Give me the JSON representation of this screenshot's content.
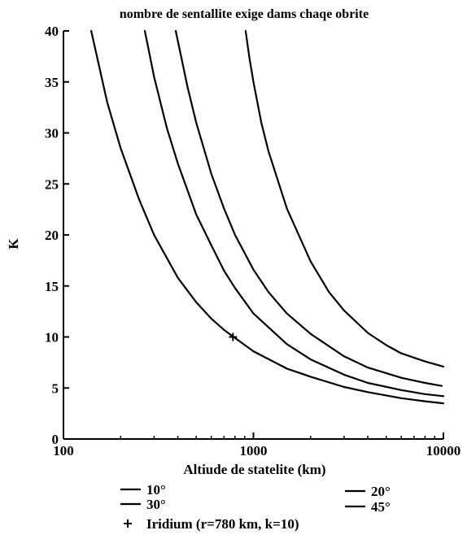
{
  "chart_data": {
    "type": "line",
    "title": "nombre de sentallite exige dams chaqe obrite",
    "xlabel": "Altiude de statelite (km)",
    "ylabel": "K",
    "x_scale": "log",
    "xlim": [
      100,
      10000
    ],
    "ylim": [
      0,
      40
    ],
    "x_ticks": [
      100,
      1000,
      10000
    ],
    "x_tick_labels": [
      "100",
      "1000",
      "10000"
    ],
    "y_ticks": [
      0,
      5,
      10,
      15,
      20,
      25,
      30,
      35,
      40
    ],
    "y_tick_labels": [
      "0",
      "5",
      "10",
      "15",
      "20",
      "25",
      "30",
      "35",
      "40"
    ],
    "grid": false,
    "legend_position": "bottom",
    "series": [
      {
        "name": "10°",
        "x": [
          140,
          170,
          200,
          250,
          300,
          400,
          500,
          600,
          700,
          800,
          1000,
          1500,
          2000,
          3000,
          4000,
          6000,
          8000,
          10000
        ],
        "values": [
          40,
          33,
          28.5,
          23.5,
          20,
          15.8,
          13.4,
          11.8,
          10.7,
          9.9,
          8.6,
          6.9,
          6.1,
          5.1,
          4.6,
          4.0,
          3.7,
          3.5
        ]
      },
      {
        "name": "20°",
        "x": [
          268,
          300,
          350,
          400,
          500,
          600,
          700,
          800,
          1000,
          1500,
          2000,
          3000,
          4000,
          6000,
          8000,
          10000
        ],
        "values": [
          40,
          35.5,
          30.5,
          27,
          22,
          19,
          16.5,
          14.8,
          12.3,
          9.3,
          7.8,
          6.3,
          5.5,
          4.8,
          4.4,
          4.2
        ]
      },
      {
        "name": "30°",
        "x": [
          390,
          450,
          500,
          600,
          700,
          800,
          1000,
          1200,
          1500,
          2000,
          3000,
          4000,
          6000,
          8000,
          9800
        ],
        "values": [
          40,
          34.5,
          31,
          26,
          22.6,
          20,
          16.6,
          14.4,
          12.3,
          10.3,
          8.1,
          7.0,
          6.0,
          5.5,
          5.2
        ]
      },
      {
        "name": "45°",
        "x": [
          910,
          950,
          1000,
          1100,
          1200,
          1500,
          2000,
          2500,
          3000,
          4000,
          5000,
          6000,
          8000,
          10000
        ],
        "values": [
          40,
          37.5,
          35,
          31,
          28.2,
          22.6,
          17.4,
          14.4,
          12.6,
          10.4,
          9.2,
          8.4,
          7.6,
          7.1
        ]
      }
    ],
    "annotations": [
      {
        "type": "marker",
        "marker": "+",
        "x": 780,
        "y": 10,
        "label": "Iridium (r=780 km, k=10)"
      }
    ],
    "legend": {
      "entries": [
        "10°",
        "20°",
        "30°",
        "45°"
      ],
      "marker_entry": "Iridium (r=780 km, k=10)"
    }
  }
}
